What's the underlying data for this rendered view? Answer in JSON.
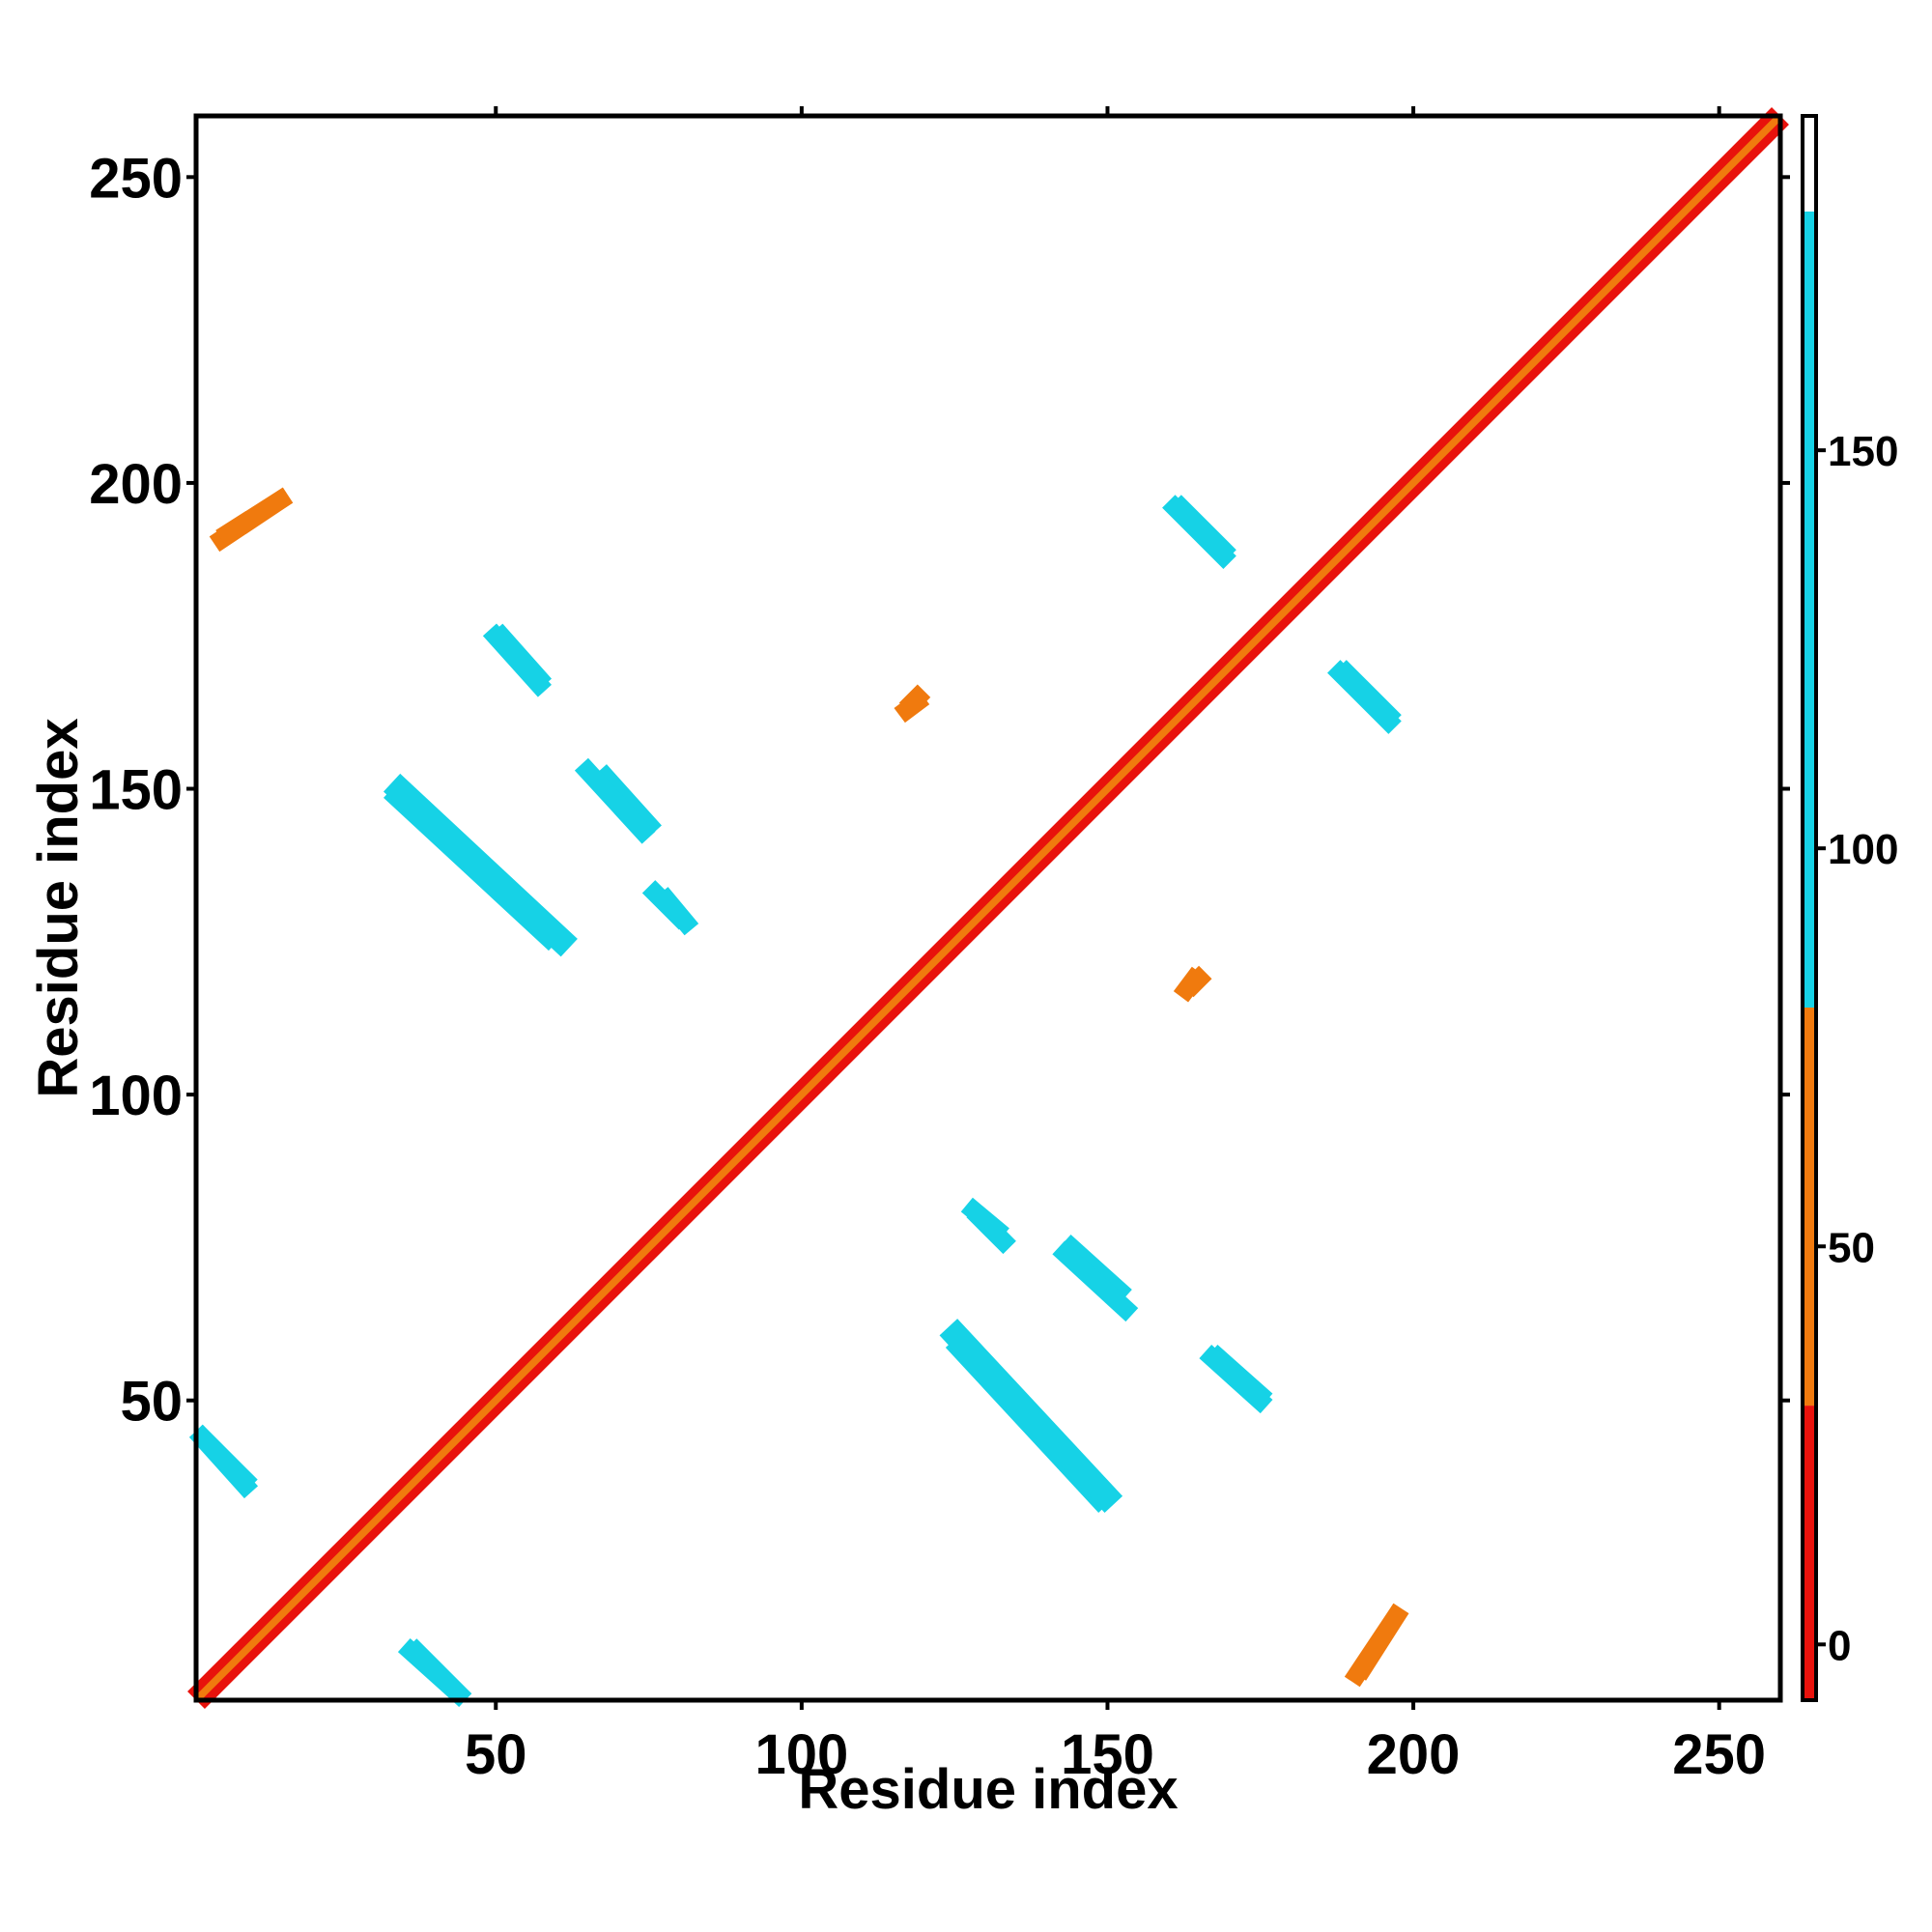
{
  "chart_data": {
    "type": "heatmap",
    "title": "",
    "xlabel": "Residue index",
    "ylabel": "Residue index",
    "xlim": [
      1,
      260
    ],
    "ylim": [
      1,
      260
    ],
    "x_ticks": [
      50,
      100,
      150,
      200,
      250
    ],
    "y_ticks": [
      50,
      100,
      150,
      200,
      250
    ],
    "symmetric": true,
    "colorbar": {
      "ticks": [
        0,
        50,
        100,
        150
      ],
      "range": [
        -7,
        192
      ],
      "bands": [
        {
          "from": -7,
          "to": 30,
          "color": "#e8120c"
        },
        {
          "from": 30,
          "to": 80,
          "color": "#f07a0e"
        },
        {
          "from": 80,
          "to": 180,
          "color": "#16d2e6"
        },
        {
          "from": 180,
          "to": 192,
          "color": "#ffffff"
        }
      ]
    },
    "colors": {
      "red": "#e8120c",
      "red_orange": "#f0400c",
      "orange": "#f5a30a",
      "cyan": "#16d2e6",
      "steel_blue": "#4a8bc4"
    },
    "regions": [
      {
        "x1": 1,
        "y1": 1,
        "x2": 260,
        "y2": 260,
        "width": 4,
        "value": 5
      },
      {
        "x1": 1,
        "y1": 1,
        "x2": 260,
        "y2": 260,
        "width": 1.2,
        "value": 40
      },
      {
        "x1": 36,
        "y1": 10,
        "x2": 45,
        "y2": 1,
        "width": 3,
        "value": 140
      },
      {
        "x1": 33,
        "y1": 150,
        "x2": 60,
        "y2": 125,
        "width": 4,
        "value": 140
      },
      {
        "x1": 50,
        "y1": 176,
        "x2": 58,
        "y2": 167,
        "width": 3,
        "value": 140
      },
      {
        "x1": 67,
        "y1": 153,
        "x2": 76,
        "y2": 143,
        "width": 3,
        "value": 140
      },
      {
        "x1": 77,
        "y1": 133,
        "x2": 82,
        "y2": 127,
        "width": 3,
        "value": 140
      },
      {
        "x1": 1,
        "y1": 45,
        "x2": 10,
        "y2": 35,
        "width": 3,
        "value": 140
      },
      {
        "x1": 124,
        "y1": 62,
        "x2": 151,
        "y2": 33,
        "width": 4,
        "value": 140
      },
      {
        "x1": 128,
        "y1": 81,
        "x2": 134,
        "y2": 75,
        "width": 3,
        "value": 140
      },
      {
        "x1": 142,
        "y1": 75,
        "x2": 154,
        "y2": 64,
        "width": 3,
        "value": 140
      },
      {
        "x1": 166,
        "y1": 58,
        "x2": 176,
        "y2": 49,
        "width": 3,
        "value": 140
      },
      {
        "x1": 160,
        "y1": 197,
        "x2": 170,
        "y2": 187,
        "width": 3,
        "value": 140
      },
      {
        "x1": 188,
        "y1": 170,
        "x2": 197,
        "y2": 161,
        "width": 3,
        "value": 140
      },
      {
        "x1": 4,
        "y1": 190,
        "x2": 16,
        "y2": 198,
        "width": 3,
        "value": 40
      },
      {
        "x1": 191,
        "y1": 5,
        "x2": 198,
        "y2": 16,
        "width": 3,
        "value": 40
      },
      {
        "x1": 117,
        "y1": 163,
        "x2": 120,
        "y2": 166,
        "width": 3,
        "value": 40
      },
      {
        "x1": 162,
        "y1": 116,
        "x2": 165,
        "y2": 120,
        "width": 3,
        "value": 40
      }
    ]
  }
}
